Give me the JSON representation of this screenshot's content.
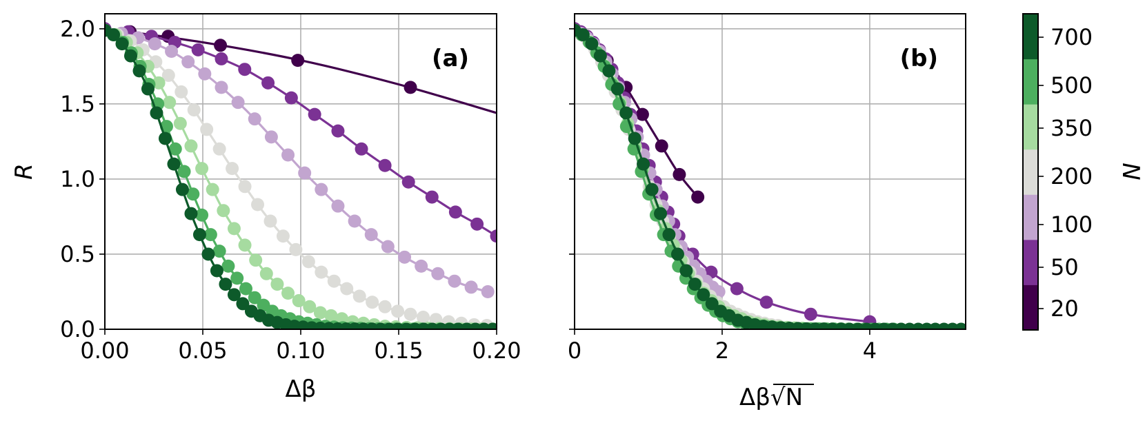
{
  "chart_data": [
    {
      "panel_label": "(a)",
      "type": "line",
      "xlabel": "Δβ",
      "ylabel": "R",
      "xlim": [
        0,
        0.2
      ],
      "ylim": [
        0,
        2.1
      ],
      "xticks": [
        "0.00",
        "0.05",
        "0.10",
        "0.15",
        "0.20"
      ],
      "yticks": [
        "0.0",
        "0.5",
        "1.0",
        "1.5",
        "2.0"
      ],
      "grid": true,
      "series": [
        {
          "N": 20,
          "color": "#40004b",
          "x": [
            0.0,
            0.0129,
            0.0323,
            0.059,
            0.0985,
            0.156
          ],
          "y": [
            2.0,
            1.98,
            1.95,
            1.89,
            1.79,
            1.61
          ],
          "line_x": [
            0.0,
            0.05,
            0.1,
            0.15,
            0.2
          ],
          "line_y": [
            2.0,
            1.91,
            1.79,
            1.63,
            1.44
          ]
        },
        {
          "N": 50,
          "color": "#7b3294",
          "x": [
            0.0,
            0.0119,
            0.0238,
            0.0357,
            0.0476,
            0.0595,
            0.0714,
            0.0833,
            0.0952,
            0.1071,
            0.119,
            0.131,
            0.143,
            0.155,
            0.167,
            0.179,
            0.19,
            0.2
          ],
          "y": [
            2.0,
            1.98,
            1.95,
            1.91,
            1.86,
            1.8,
            1.73,
            1.64,
            1.54,
            1.43,
            1.32,
            1.2,
            1.09,
            0.98,
            0.88,
            0.78,
            0.7,
            0.62
          ]
        },
        {
          "N": 100,
          "color": "#c2a5cf",
          "x": [
            0.0,
            0.0085,
            0.017,
            0.0255,
            0.034,
            0.0425,
            0.051,
            0.0595,
            0.068,
            0.0765,
            0.085,
            0.0935,
            0.102,
            0.1105,
            0.119,
            0.1275,
            0.136,
            0.1445,
            0.153,
            0.1615,
            0.17,
            0.1785,
            0.187,
            0.1955
          ],
          "y": [
            1.99,
            1.97,
            1.94,
            1.9,
            1.85,
            1.78,
            1.7,
            1.61,
            1.51,
            1.4,
            1.28,
            1.16,
            1.04,
            0.93,
            0.82,
            0.72,
            0.63,
            0.55,
            0.48,
            0.42,
            0.37,
            0.32,
            0.28,
            0.25
          ]
        },
        {
          "N": 200,
          "color": "#dcdcd8",
          "x": [
            0.0,
            0.0065,
            0.013,
            0.0195,
            0.026,
            0.0325,
            0.039,
            0.0455,
            0.052,
            0.0585,
            0.065,
            0.0715,
            0.078,
            0.0845,
            0.091,
            0.0975,
            0.104,
            0.1105,
            0.117,
            0.1235,
            0.13,
            0.1365,
            0.143,
            0.1495,
            0.156,
            0.1625,
            0.169,
            0.1755,
            0.182,
            0.1885,
            0.195
          ],
          "y": [
            1.99,
            1.96,
            1.92,
            1.86,
            1.78,
            1.69,
            1.58,
            1.46,
            1.33,
            1.2,
            1.07,
            0.95,
            0.83,
            0.72,
            0.62,
            0.53,
            0.45,
            0.38,
            0.32,
            0.27,
            0.22,
            0.18,
            0.15,
            0.12,
            0.1,
            0.08,
            0.065,
            0.05,
            0.04,
            0.03,
            0.025
          ]
        },
        {
          "N": 350,
          "color": "#a6dba0",
          "x": [
            0.0,
            0.0055,
            0.011,
            0.0165,
            0.022,
            0.0275,
            0.033,
            0.0385,
            0.044,
            0.0495,
            0.055,
            0.0605,
            0.066,
            0.0715,
            0.077,
            0.0825,
            0.088,
            0.0935,
            0.099,
            0.1045,
            0.11,
            0.1155,
            0.121,
            0.1265,
            0.132,
            0.1375,
            0.143,
            0.1485,
            0.154,
            0.1595,
            0.165,
            0.1705,
            0.176,
            0.1815,
            0.187,
            0.1925,
            0.198
          ],
          "y": [
            1.99,
            1.96,
            1.91,
            1.84,
            1.75,
            1.64,
            1.51,
            1.37,
            1.22,
            1.07,
            0.93,
            0.79,
            0.67,
            0.56,
            0.46,
            0.37,
            0.3,
            0.24,
            0.19,
            0.15,
            0.11,
            0.09,
            0.07,
            0.05,
            0.04,
            0.03,
            0.02,
            0.016,
            0.012,
            0.009,
            0.007,
            0.005,
            0.004,
            0.003,
            0.002,
            0.002,
            0.001
          ]
        },
        {
          "N": 500,
          "color": "#4daf5f",
          "x": [
            0.0,
            0.0045,
            0.009,
            0.0135,
            0.018,
            0.0225,
            0.027,
            0.0315,
            0.036,
            0.0405,
            0.045,
            0.0495,
            0.054,
            0.0585,
            0.063,
            0.0675,
            0.072,
            0.0765,
            0.081,
            0.0855,
            0.09,
            0.0945,
            0.099,
            0.1035,
            0.108,
            0.1125,
            0.117,
            0.1215,
            0.126,
            0.1305,
            0.135,
            0.1395,
            0.144,
            0.1485,
            0.153,
            0.1575,
            0.162,
            0.1665,
            0.171,
            0.1755,
            0.18,
            0.1845,
            0.189,
            0.1935,
            0.198
          ],
          "y": [
            1.99,
            1.96,
            1.91,
            1.84,
            1.75,
            1.63,
            1.5,
            1.35,
            1.2,
            1.05,
            0.9,
            0.76,
            0.63,
            0.52,
            0.42,
            0.34,
            0.27,
            0.21,
            0.16,
            0.12,
            0.09,
            0.07,
            0.05,
            0.04,
            0.03,
            0.02,
            0.015,
            0.01,
            0.008,
            0.006,
            0.004,
            0.003,
            0.002,
            0.002,
            0.001,
            0.001,
            0.001,
            0.0,
            0.0,
            0.0,
            0.0,
            0.0,
            0.0,
            0.0,
            0.0
          ]
        },
        {
          "N": 700,
          "color": "#0d5a2a",
          "x": [
            0.0,
            0.0044,
            0.0088,
            0.0132,
            0.0176,
            0.022,
            0.0264,
            0.0308,
            0.0352,
            0.0396,
            0.044,
            0.0484,
            0.0528,
            0.0572,
            0.0616,
            0.066,
            0.0704,
            0.0748,
            0.0792,
            0.0836,
            0.088,
            0.0924,
            0.0968,
            0.1012,
            0.1056,
            0.11,
            0.1144,
            0.1188,
            0.1232,
            0.1276,
            0.132,
            0.1364,
            0.1408,
            0.1452,
            0.1496,
            0.154,
            0.1584,
            0.1628,
            0.1672,
            0.1716,
            0.176,
            0.1804,
            0.1848,
            0.1892,
            0.1936,
            0.198
          ],
          "y": [
            1.99,
            1.96,
            1.9,
            1.82,
            1.72,
            1.6,
            1.44,
            1.27,
            1.1,
            0.93,
            0.77,
            0.63,
            0.5,
            0.39,
            0.3,
            0.23,
            0.17,
            0.12,
            0.09,
            0.06,
            0.045,
            0.03,
            0.02,
            0.015,
            0.01,
            0.007,
            0.005,
            0.003,
            0.002,
            0.002,
            0.001,
            0.001,
            0.0,
            0.0,
            0.0,
            0.0,
            0.0,
            0.0,
            0.0,
            0.0,
            0.0,
            0.0,
            0.0,
            0.0,
            0.0,
            0.0
          ]
        }
      ]
    },
    {
      "panel_label": "(b)",
      "type": "line",
      "xlabel": "Δβ√N",
      "ylabel": "",
      "xlim": [
        0,
        5.3
      ],
      "ylim": [
        0,
        2.1
      ],
      "xticks": [
        "0",
        "2",
        "4"
      ],
      "yticks": [],
      "grid": true,
      "series": [
        {
          "N": 20,
          "color": "#40004b",
          "x": [
            0.0,
            0.058,
            0.144,
            0.264,
            0.441,
            0.698,
            0.92,
            1.18,
            1.42,
            1.67
          ],
          "y": [
            2.0,
            1.98,
            1.95,
            1.89,
            1.79,
            1.61,
            1.43,
            1.22,
            1.03,
            0.88
          ]
        },
        {
          "N": 50,
          "color": "#7b3294",
          "x": [
            0.0,
            0.084,
            0.168,
            0.252,
            0.337,
            0.421,
            0.505,
            0.589,
            0.673,
            0.757,
            0.841,
            0.926,
            1.011,
            1.096,
            1.181,
            1.266,
            1.343,
            1.414,
            1.6,
            1.85,
            2.2,
            2.6,
            3.2,
            4.0
          ],
          "y": [
            2.0,
            1.98,
            1.95,
            1.91,
            1.86,
            1.8,
            1.73,
            1.64,
            1.54,
            1.43,
            1.32,
            1.2,
            1.09,
            0.98,
            0.88,
            0.78,
            0.7,
            0.62,
            0.5,
            0.38,
            0.27,
            0.18,
            0.1,
            0.05
          ]
        },
        {
          "N": 100,
          "color": "#c2a5cf",
          "x": [
            0.0,
            0.085,
            0.17,
            0.255,
            0.34,
            0.425,
            0.51,
            0.595,
            0.68,
            0.765,
            0.85,
            0.935,
            1.02,
            1.105,
            1.19,
            1.275,
            1.36,
            1.445,
            1.53,
            1.615,
            1.7,
            1.785,
            1.87,
            1.955
          ],
          "y": [
            1.99,
            1.97,
            1.94,
            1.9,
            1.85,
            1.78,
            1.7,
            1.61,
            1.51,
            1.4,
            1.28,
            1.16,
            1.04,
            0.93,
            0.82,
            0.72,
            0.63,
            0.55,
            0.48,
            0.42,
            0.37,
            0.32,
            0.28,
            0.25
          ]
        },
        {
          "N": 200,
          "color": "#dcdcd8",
          "x": [
            0.0,
            0.092,
            0.184,
            0.276,
            0.368,
            0.46,
            0.552,
            0.643,
            0.735,
            0.827,
            0.919,
            1.011,
            1.103,
            1.195,
            1.287,
            1.379,
            1.471,
            1.563,
            1.655,
            1.747,
            1.838,
            1.93,
            2.022,
            2.114,
            2.206,
            2.298,
            2.39,
            2.482,
            2.574,
            2.666,
            2.758
          ],
          "y": [
            1.99,
            1.96,
            1.92,
            1.86,
            1.78,
            1.69,
            1.58,
            1.46,
            1.33,
            1.2,
            1.07,
            0.95,
            0.83,
            0.72,
            0.62,
            0.53,
            0.45,
            0.38,
            0.32,
            0.27,
            0.22,
            0.18,
            0.15,
            0.12,
            0.1,
            0.08,
            0.065,
            0.05,
            0.04,
            0.03,
            0.025
          ]
        },
        {
          "N": 350,
          "color": "#a6dba0",
          "x": [
            0.0,
            0.103,
            0.206,
            0.309,
            0.412,
            0.514,
            0.617,
            0.72,
            0.823,
            0.926,
            1.029,
            1.132,
            1.235,
            1.338,
            1.441,
            1.543,
            1.646,
            1.749,
            1.852,
            1.955,
            2.058,
            2.161,
            2.264,
            2.367,
            2.469,
            2.572,
            2.675,
            2.778,
            2.881,
            2.984,
            3.087,
            3.19,
            3.293,
            3.396,
            3.498,
            3.601,
            3.704
          ],
          "y": [
            1.99,
            1.96,
            1.91,
            1.84,
            1.75,
            1.64,
            1.51,
            1.37,
            1.22,
            1.07,
            0.93,
            0.79,
            0.67,
            0.56,
            0.46,
            0.37,
            0.3,
            0.24,
            0.19,
            0.15,
            0.11,
            0.09,
            0.07,
            0.05,
            0.04,
            0.03,
            0.02,
            0.016,
            0.012,
            0.009,
            0.007,
            0.005,
            0.004,
            0.003,
            0.002,
            0.002,
            0.001
          ]
        },
        {
          "N": 500,
          "color": "#4daf5f",
          "x": [
            0.0,
            0.101,
            0.201,
            0.302,
            0.402,
            0.503,
            0.604,
            0.704,
            0.805,
            0.906,
            1.006,
            1.107,
            1.207,
            1.308,
            1.409,
            1.509,
            1.61,
            1.711,
            1.811,
            1.912,
            2.012,
            2.113,
            2.214,
            2.314,
            2.415,
            2.516,
            2.616,
            2.717,
            2.817,
            2.918,
            3.019,
            3.119,
            3.22,
            3.321,
            3.421,
            3.522,
            3.622,
            3.723,
            3.824,
            3.924,
            4.025,
            4.125,
            4.226,
            4.327,
            4.427
          ],
          "y": [
            1.99,
            1.96,
            1.91,
            1.84,
            1.75,
            1.63,
            1.5,
            1.35,
            1.2,
            1.05,
            0.9,
            0.76,
            0.63,
            0.52,
            0.42,
            0.34,
            0.27,
            0.21,
            0.16,
            0.12,
            0.09,
            0.07,
            0.05,
            0.04,
            0.03,
            0.02,
            0.015,
            0.01,
            0.008,
            0.006,
            0.004,
            0.003,
            0.002,
            0.002,
            0.001,
            0.001,
            0.001,
            0.0,
            0.0,
            0.0,
            0.0,
            0.0,
            0.0,
            0.0,
            0.0
          ]
        },
        {
          "N": 700,
          "color": "#0d5a2a",
          "x": [
            0.0,
            0.116,
            0.233,
            0.349,
            0.466,
            0.582,
            0.698,
            0.815,
            0.931,
            1.048,
            1.164,
            1.28,
            1.397,
            1.513,
            1.63,
            1.746,
            1.862,
            1.979,
            2.095,
            2.212,
            2.328,
            2.444,
            2.561,
            2.677,
            2.794,
            2.91,
            3.027,
            3.143,
            3.26,
            3.376,
            3.492,
            3.609,
            3.725,
            3.842,
            3.958,
            4.074,
            4.191,
            4.307,
            4.424,
            4.54,
            4.657,
            4.773,
            4.889,
            5.006,
            5.122,
            5.238
          ],
          "y": [
            1.99,
            1.96,
            1.9,
            1.82,
            1.72,
            1.6,
            1.44,
            1.27,
            1.1,
            0.93,
            0.77,
            0.63,
            0.5,
            0.39,
            0.3,
            0.23,
            0.17,
            0.12,
            0.09,
            0.06,
            0.045,
            0.03,
            0.02,
            0.015,
            0.01,
            0.007,
            0.005,
            0.003,
            0.002,
            0.002,
            0.001,
            0.001,
            0.0,
            0.0,
            0.0,
            0.0,
            0.0,
            0.0,
            0.0,
            0.0,
            0.0,
            0.0,
            0.0,
            0.0,
            0.0,
            0.0
          ]
        }
      ]
    }
  ],
  "colorbar": {
    "label": "N",
    "ticks": [
      "20",
      "50",
      "100",
      "200",
      "350",
      "500",
      "700"
    ],
    "colors": [
      "#40004b",
      "#7b3294",
      "#c2a5cf",
      "#dcdcd8",
      "#a6dba0",
      "#4daf5f",
      "#0d5a2a"
    ]
  }
}
